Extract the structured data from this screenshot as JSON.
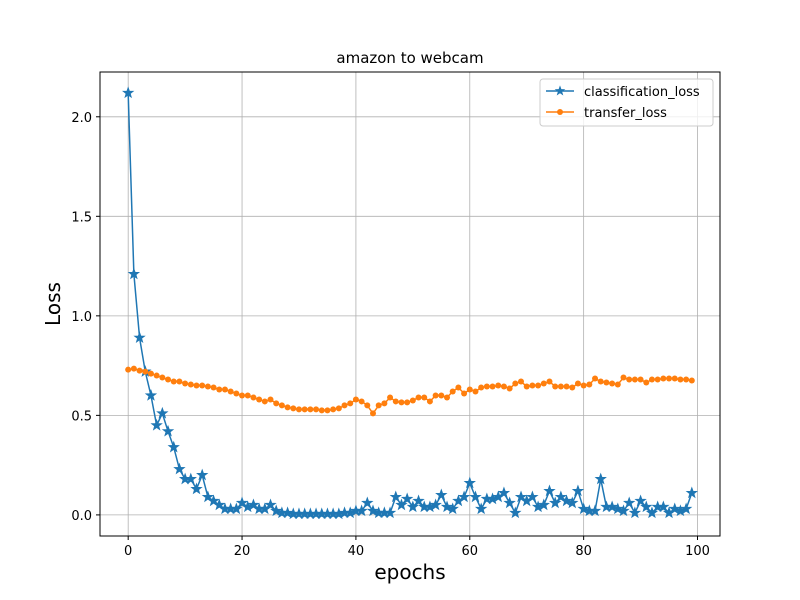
{
  "chart_data": {
    "type": "line",
    "title": "amazon to webcam",
    "xlabel": "epochs",
    "ylabel": "Loss",
    "xlim": [
      -4.95,
      103.95
    ],
    "ylim": [
      -0.106,
      2.225
    ],
    "xticks": [
      0,
      20,
      40,
      60,
      80,
      100
    ],
    "yticks": [
      0.0,
      0.5,
      1.0,
      1.5,
      2.0
    ],
    "ytick_labels": [
      "0.0",
      "0.5",
      "1.0",
      "1.5",
      "2.0"
    ],
    "grid": true,
    "legend": "top-right",
    "series": [
      {
        "name": "classification_loss",
        "color": "#1f77b4",
        "marker": "star",
        "values": [
          2.12,
          1.21,
          0.89,
          0.72,
          0.6,
          0.45,
          0.51,
          0.42,
          0.34,
          0.23,
          0.18,
          0.18,
          0.13,
          0.2,
          0.09,
          0.07,
          0.05,
          0.03,
          0.03,
          0.03,
          0.06,
          0.04,
          0.05,
          0.03,
          0.03,
          0.05,
          0.02,
          0.01,
          0.01,
          0.005,
          0.005,
          0.005,
          0.005,
          0.005,
          0.005,
          0.005,
          0.005,
          0.005,
          0.01,
          0.01,
          0.02,
          0.02,
          0.06,
          0.02,
          0.01,
          0.01,
          0.01,
          0.09,
          0.05,
          0.08,
          0.04,
          0.07,
          0.04,
          0.04,
          0.05,
          0.1,
          0.04,
          0.03,
          0.07,
          0.09,
          0.16,
          0.09,
          0.03,
          0.08,
          0.08,
          0.09,
          0.11,
          0.06,
          0.01,
          0.09,
          0.07,
          0.09,
          0.04,
          0.05,
          0.12,
          0.06,
          0.09,
          0.07,
          0.06,
          0.12,
          0.03,
          0.02,
          0.02,
          0.18,
          0.04,
          0.04,
          0.03,
          0.02,
          0.06,
          0.01,
          0.07,
          0.04,
          0.01,
          0.04,
          0.04,
          0.01,
          0.03,
          0.02,
          0.03,
          0.11
        ]
      },
      {
        "name": "transfer_loss",
        "color": "#ff7f0e",
        "marker": "circle",
        "values": [
          0.73,
          0.735,
          0.725,
          0.72,
          0.71,
          0.7,
          0.69,
          0.68,
          0.67,
          0.67,
          0.66,
          0.655,
          0.65,
          0.65,
          0.645,
          0.64,
          0.63,
          0.63,
          0.62,
          0.61,
          0.6,
          0.6,
          0.59,
          0.58,
          0.57,
          0.58,
          0.56,
          0.55,
          0.54,
          0.535,
          0.53,
          0.53,
          0.53,
          0.53,
          0.525,
          0.525,
          0.53,
          0.535,
          0.55,
          0.56,
          0.58,
          0.57,
          0.55,
          0.51,
          0.55,
          0.56,
          0.59,
          0.57,
          0.565,
          0.565,
          0.575,
          0.59,
          0.59,
          0.57,
          0.6,
          0.6,
          0.59,
          0.62,
          0.64,
          0.61,
          0.63,
          0.62,
          0.64,
          0.645,
          0.645,
          0.65,
          0.645,
          0.635,
          0.66,
          0.67,
          0.645,
          0.65,
          0.65,
          0.66,
          0.67,
          0.645,
          0.645,
          0.645,
          0.64,
          0.66,
          0.65,
          0.655,
          0.685,
          0.67,
          0.665,
          0.66,
          0.655,
          0.69,
          0.68,
          0.68,
          0.68,
          0.665,
          0.68,
          0.68,
          0.685,
          0.685,
          0.685,
          0.68,
          0.68,
          0.675
        ]
      }
    ]
  }
}
